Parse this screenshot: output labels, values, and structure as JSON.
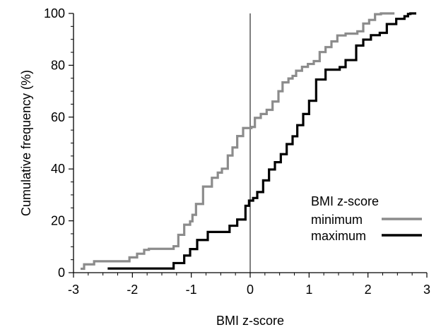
{
  "chart_data": {
    "type": "line",
    "xlabel": "BMI z-score",
    "ylabel": "Cumulative frequency (%)",
    "xlim": [
      -3,
      3
    ],
    "ylim": [
      0,
      100
    ],
    "x_ticks": [
      -3,
      -2,
      -1,
      0,
      1,
      2,
      3
    ],
    "y_ticks": [
      0,
      20,
      40,
      60,
      80,
      100
    ],
    "x_tick_labels": [
      "-3",
      "-2",
      "-1",
      "0",
      "1",
      "2",
      "3"
    ],
    "y_tick_labels": [
      "0",
      "20",
      "40",
      "60",
      "80",
      "100"
    ],
    "reference_line_x": 0,
    "grid": false,
    "legend": {
      "title": "BMI z-score",
      "placement": "bottom-right"
    },
    "series": [
      {
        "name": "minimum",
        "color": "#8c8c8c",
        "step": "post",
        "points": [
          [
            -2.88,
            1.5
          ],
          [
            -2.82,
            3.2
          ],
          [
            -2.65,
            4.4
          ],
          [
            -2.22,
            4.4
          ],
          [
            -2.05,
            5.9
          ],
          [
            -1.92,
            7.3
          ],
          [
            -1.8,
            8.8
          ],
          [
            -1.72,
            9.2
          ],
          [
            -1.3,
            10.2
          ],
          [
            -1.22,
            14.6
          ],
          [
            -1.12,
            18.5
          ],
          [
            -1.02,
            19.8
          ],
          [
            -0.98,
            22.3
          ],
          [
            -0.92,
            26.5
          ],
          [
            -0.8,
            33.2
          ],
          [
            -0.65,
            36.6
          ],
          [
            -0.55,
            38.6
          ],
          [
            -0.48,
            40.1
          ],
          [
            -0.38,
            45.2
          ],
          [
            -0.3,
            48.3
          ],
          [
            -0.22,
            52.7
          ],
          [
            -0.12,
            55.8
          ],
          [
            0.02,
            56.2
          ],
          [
            0.08,
            59.7
          ],
          [
            0.18,
            61.2
          ],
          [
            0.28,
            62.8
          ],
          [
            0.38,
            66.0
          ],
          [
            0.48,
            70.0
          ],
          [
            0.55,
            73.4
          ],
          [
            0.65,
            74.9
          ],
          [
            0.72,
            75.9
          ],
          [
            0.78,
            77.9
          ],
          [
            0.88,
            79.4
          ],
          [
            0.98,
            80.5
          ],
          [
            1.08,
            81.6
          ],
          [
            1.18,
            85.1
          ],
          [
            1.28,
            87.0
          ],
          [
            1.38,
            89.2
          ],
          [
            1.48,
            91.5
          ],
          [
            1.62,
            92.2
          ],
          [
            1.82,
            93.1
          ],
          [
            1.92,
            96.1
          ],
          [
            2.02,
            97.5
          ],
          [
            2.12,
            99.7
          ],
          [
            2.22,
            100
          ],
          [
            2.45,
            100
          ]
        ]
      },
      {
        "name": "maximum",
        "color": "#000000",
        "step": "post",
        "points": [
          [
            -2.42,
            1.6
          ],
          [
            -1.3,
            3.7
          ],
          [
            -1.12,
            6.6
          ],
          [
            -1.02,
            9.1
          ],
          [
            -0.9,
            12.6
          ],
          [
            -0.72,
            15.7
          ],
          [
            -0.35,
            18.1
          ],
          [
            -0.22,
            20.5
          ],
          [
            -0.08,
            25.8
          ],
          [
            -0.02,
            27.8
          ],
          [
            0.05,
            28.8
          ],
          [
            0.12,
            31.1
          ],
          [
            0.22,
            35.6
          ],
          [
            0.32,
            39.8
          ],
          [
            0.42,
            42.6
          ],
          [
            0.52,
            45.7
          ],
          [
            0.62,
            49.6
          ],
          [
            0.72,
            52.6
          ],
          [
            0.8,
            56.9
          ],
          [
            0.9,
            61.2
          ],
          [
            1.0,
            66.3
          ],
          [
            1.12,
            74.5
          ],
          [
            1.28,
            78.3
          ],
          [
            1.52,
            79.3
          ],
          [
            1.62,
            82.0
          ],
          [
            1.8,
            87.6
          ],
          [
            1.92,
            89.9
          ],
          [
            2.05,
            91.6
          ],
          [
            2.2,
            92.5
          ],
          [
            2.32,
            95.9
          ],
          [
            2.48,
            97.9
          ],
          [
            2.62,
            98.9
          ],
          [
            2.68,
            99.8
          ],
          [
            2.72,
            100
          ],
          [
            2.82,
            100
          ]
        ]
      }
    ]
  }
}
